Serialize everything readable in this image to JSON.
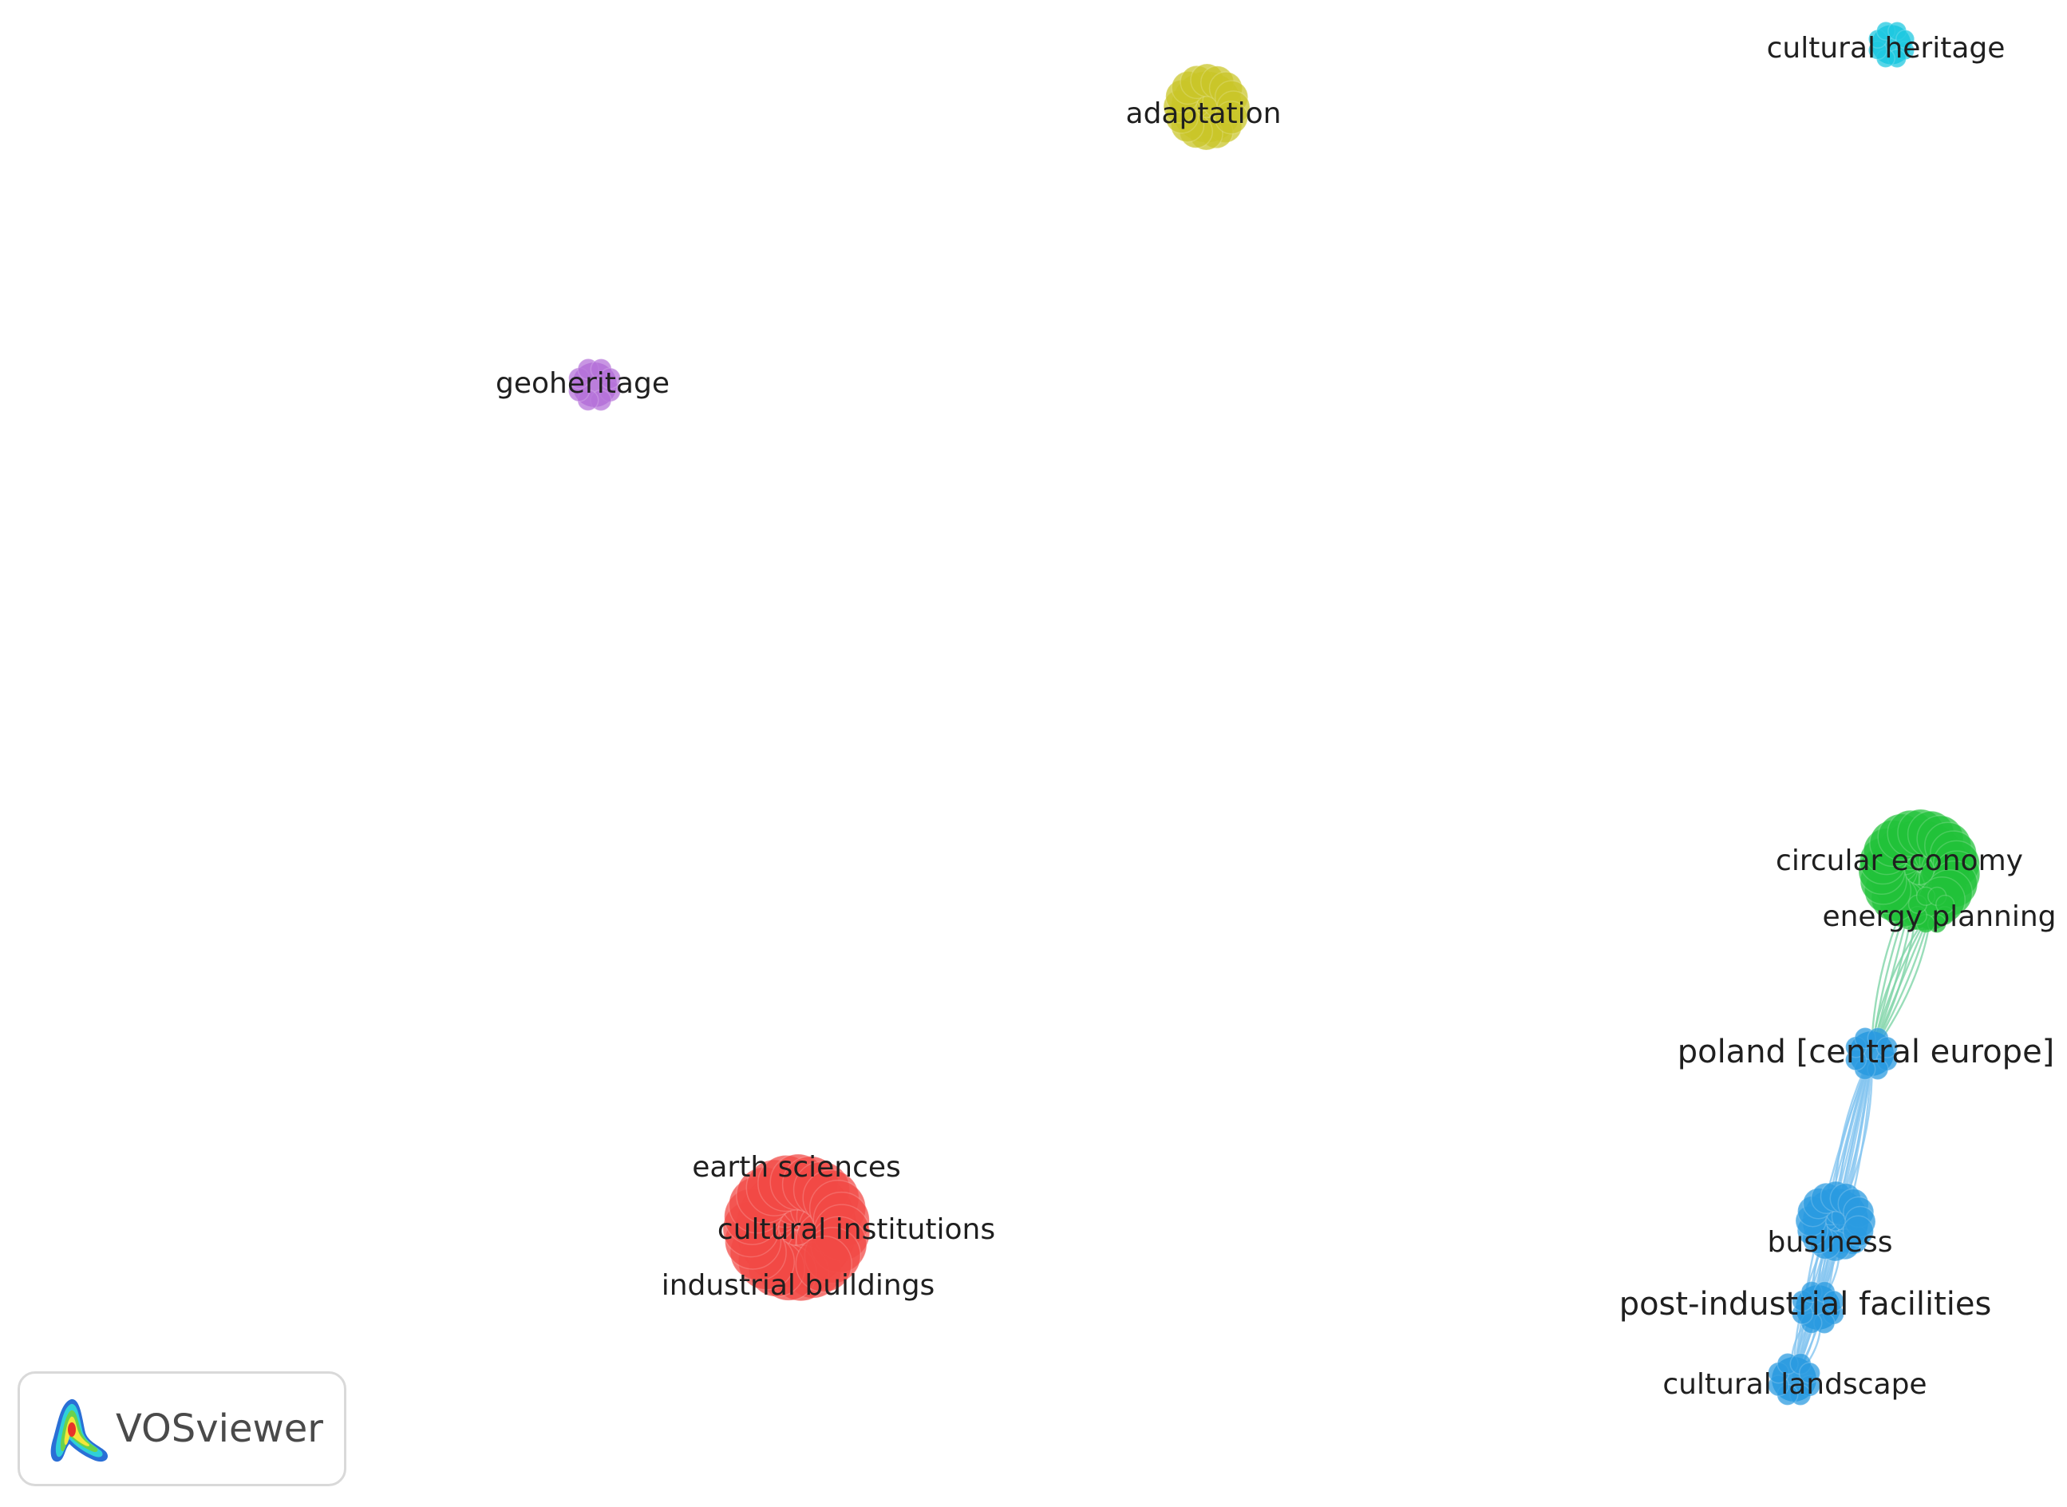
{
  "app": {
    "brand_name": "VOSviewer",
    "logo_icon": "vosviewer-density-logo-icon"
  },
  "network": {
    "nodes": [
      {
        "id": "cultural-heritage",
        "label": "cultural heritage",
        "cluster": 6,
        "color": "#1fc8e0"
      },
      {
        "id": "adaptation",
        "label": "adaptation",
        "cluster": 4,
        "color": "#c9c62a"
      },
      {
        "id": "geoheritage",
        "label": "geoheritage",
        "cluster": 5,
        "color": "#b573d9"
      },
      {
        "id": "circular-economy",
        "label": "circular economy",
        "cluster": 2,
        "color": "#22c23a"
      },
      {
        "id": "energy-planning",
        "label": "energy planning",
        "cluster": 2,
        "color": "#22c23a"
      },
      {
        "id": "poland-central-europe",
        "label": "poland [central europe]",
        "cluster": 3,
        "color": "#2b9be0"
      },
      {
        "id": "business",
        "label": "business",
        "cluster": 3,
        "color": "#2b9be0"
      },
      {
        "id": "post-industrial-facilities",
        "label": "post-industrial facilities",
        "cluster": 3,
        "color": "#2b9be0"
      },
      {
        "id": "cultural-landscape",
        "label": "cultural landscape",
        "cluster": 3,
        "color": "#2b9be0"
      },
      {
        "id": "earth-sciences",
        "label": "earth sciences",
        "cluster": 1,
        "color": "#f24a45"
      },
      {
        "id": "cultural-institutions",
        "label": "cultural institutions",
        "cluster": 1,
        "color": "#f24a45"
      },
      {
        "id": "industrial-buildings",
        "label": "industrial buildings",
        "cluster": 1,
        "color": "#f24a45"
      }
    ],
    "links": [
      {
        "source": "circular-economy",
        "target": "poland-central-europe",
        "color": "#7fd4a8"
      },
      {
        "source": "energy-planning",
        "target": "poland-central-europe",
        "color": "#7fd4a8"
      },
      {
        "source": "poland-central-europe",
        "target": "business",
        "color": "#86c6f0"
      },
      {
        "source": "poland-central-europe",
        "target": "post-industrial-facilities",
        "color": "#86c6f0"
      },
      {
        "source": "poland-central-europe",
        "target": "cultural-landscape",
        "color": "#86c6f0"
      },
      {
        "source": "business",
        "target": "post-industrial-facilities",
        "color": "#86c6f0"
      },
      {
        "source": "business",
        "target": "cultural-landscape",
        "color": "#86c6f0"
      },
      {
        "source": "post-industrial-facilities",
        "target": "cultural-landscape",
        "color": "#86c6f0"
      }
    ]
  }
}
